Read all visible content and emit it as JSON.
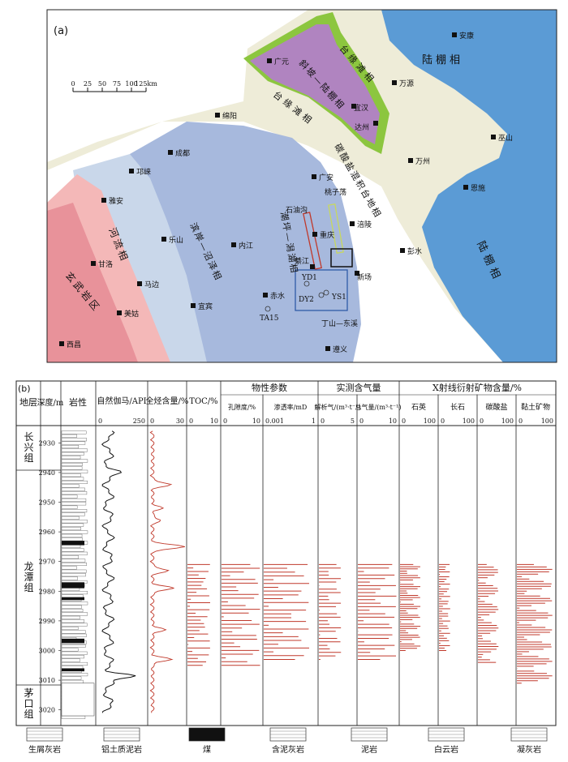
{
  "panel_a": {
    "label": "(a)",
    "scale": {
      "ticks": [
        "0",
        "25",
        "50",
        "75",
        "100",
        "125km"
      ]
    },
    "facies": {
      "shelf_ne": "陆棚相",
      "shelf_e": "陆棚相",
      "slope": "斜坡—陆棚相",
      "margin_n": "台缘滩相",
      "margin_s": "台缘滩相",
      "carbonate_platform": "碳酸盐混积台地相",
      "tidal_lagoon": "潮坪—潟湖相",
      "coastal_swamp": "滨岸—沼泽相",
      "river": "河流相",
      "basalt": "玄武岩区"
    },
    "cities": [
      "安康",
      "广元",
      "万源",
      "宜汉",
      "达州",
      "巫山",
      "绵阳",
      "成都",
      "万州",
      "邛崃",
      "广安",
      "恩施",
      "雅安",
      "石油沟",
      "桃子荡",
      "乐山",
      "重庆",
      "涪陵",
      "内江",
      "彭水",
      "甘洛",
      "綦江",
      "新场",
      "马边",
      "YD1",
      "宜宾",
      "DY2",
      "YS1",
      "赤水",
      "美姑",
      "TA15",
      "丁山—东溪",
      "西昌",
      "遵义"
    ]
  },
  "panel_b": {
    "label": "(b)",
    "headers": {
      "formation": "地层",
      "depth": "深度/m",
      "lithology": "岩性",
      "gr": "自然伽马/API",
      "gr_scale": [
        "0",
        "250"
      ],
      "hc": "全烃含量/%",
      "hc_scale": [
        "0",
        "30"
      ],
      "toc": "TOC/%",
      "toc_scale": [
        "0",
        "10"
      ],
      "phys_group": "物性参数",
      "porosity": "孔隙度/%",
      "porosity_scale": [
        "0",
        "10"
      ],
      "perm": "渗透率/mD",
      "perm_scale": [
        "0.001",
        "1"
      ],
      "gas_group": "实测含气量",
      "desorbed": "解析气/(m³·t⁻¹)",
      "desorbed_scale": [
        "0",
        "5"
      ],
      "total_gas": "总气量/(m³·t⁻¹)",
      "total_gas_scale": [
        "0",
        "10"
      ],
      "xrd_group": "X射线衍射矿物含量/%",
      "quartz": "石英",
      "feldspar": "长石",
      "carbonate": "碳酸盐",
      "clay": "黏土矿物",
      "xrd_scale": [
        "0",
        "100"
      ]
    },
    "formations": [
      "长兴组",
      "龙潭组",
      "茅口组"
    ],
    "depth_ticks": [
      "2930",
      "2940",
      "2950",
      "2960",
      "2970",
      "2980",
      "2990",
      "3000",
      "3010",
      "3020"
    ],
    "legend": [
      "生屑灰岩",
      "铝土质泥岩",
      "煤",
      "含泥灰岩",
      "泥岩",
      "白云岩",
      "凝灰岩"
    ]
  },
  "colors": {
    "shelf": "#5b9bd5",
    "slope": "#b084c0",
    "margin": "#8cc63f",
    "platform": "#eeecd8",
    "lagoon": "#a7b9dd",
    "coastal": "#c9d7ea",
    "river": "#f4b8b8",
    "basalt": "#e8929a",
    "data_red": "#c0392b"
  }
}
